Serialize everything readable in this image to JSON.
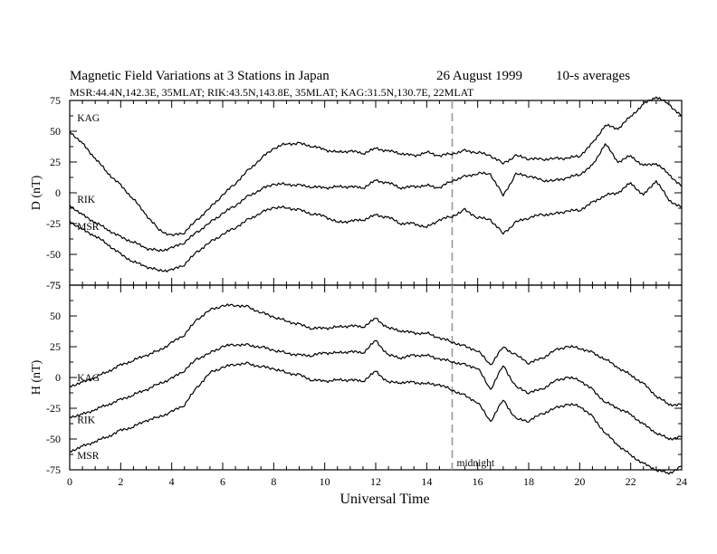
{
  "header": {
    "title_left": "Magnetic Field Variations at 3 Stations in Japan",
    "title_date": "26 August  1999",
    "title_avg": "10-s averages",
    "subtitle": "MSR:44.4N,142.3E, 35MLAT;  RIK:43.5N,143.8E, 35MLAT;  KAG:31.5N,130.7E, 22MLAT"
  },
  "chart_data": [
    {
      "type": "line",
      "ylabel": "D (nT)",
      "ylim": [
        -75,
        75
      ],
      "yticks": [
        "75",
        "50",
        "25",
        "0",
        "-25",
        "-50",
        "-75"
      ],
      "xlim": [
        0,
        24
      ],
      "grid": false,
      "annotations": [
        {
          "text": "midnight",
          "x": 15,
          "style": "dashed-vertical"
        }
      ],
      "series": [
        {
          "name": "KAG",
          "x": [
            0,
            0.5,
            1,
            1.5,
            2,
            2.5,
            3,
            3.5,
            4,
            4.5,
            5,
            5.5,
            6,
            6.5,
            7,
            7.5,
            8,
            8.5,
            9,
            9.5,
            10,
            10.5,
            11,
            11.5,
            12,
            12.5,
            13,
            13.5,
            14,
            14.5,
            15,
            15.5,
            16,
            16.5,
            17,
            17.5,
            18,
            18.5,
            19,
            19.5,
            20,
            20.5,
            21,
            21.5,
            22,
            22.5,
            23,
            23.5,
            24
          ],
          "values": [
            50,
            40,
            28,
            16,
            6,
            -5,
            -18,
            -30,
            -35,
            -32,
            -22,
            -12,
            -2,
            8,
            18,
            28,
            36,
            40,
            40,
            38,
            35,
            33,
            34,
            32,
            36,
            34,
            32,
            30,
            33,
            30,
            32,
            34,
            33,
            30,
            24,
            30,
            28,
            27,
            28,
            28,
            30,
            40,
            55,
            52,
            62,
            72,
            78,
            72,
            62
          ]
        },
        {
          "name": "RIK",
          "x": [
            0,
            0.5,
            1,
            1.5,
            2,
            2.5,
            3,
            3.5,
            4,
            4.5,
            5,
            5.5,
            6,
            6.5,
            7,
            7.5,
            8,
            8.5,
            9,
            9.5,
            10,
            10.5,
            11,
            11.5,
            12,
            12.5,
            13,
            13.5,
            14,
            14.5,
            15,
            15.5,
            16,
            16.5,
            17,
            17.5,
            18,
            18.5,
            19,
            19.5,
            20,
            20.5,
            21,
            21.5,
            22,
            22.5,
            23,
            23.5,
            24
          ],
          "values": [
            -10,
            -18,
            -24,
            -30,
            -36,
            -40,
            -45,
            -47,
            -45,
            -40,
            -32,
            -24,
            -17,
            -10,
            -3,
            3,
            7,
            7,
            6,
            5,
            4,
            5,
            5,
            4,
            10,
            8,
            4,
            5,
            6,
            4,
            10,
            13,
            16,
            15,
            -2,
            15,
            14,
            10,
            10,
            12,
            15,
            22,
            40,
            25,
            30,
            22,
            24,
            15,
            5
          ]
        },
        {
          "name": "MSR",
          "x": [
            0,
            0.5,
            1,
            1.5,
            2,
            2.5,
            3,
            3.5,
            4,
            4.5,
            5,
            5.5,
            6,
            6.5,
            7,
            7.5,
            8,
            8.5,
            9,
            9.5,
            10,
            10.5,
            11,
            11.5,
            12,
            12.5,
            13,
            13.5,
            14,
            14.5,
            15,
            15.5,
            16,
            16.5,
            17,
            17.5,
            18,
            18.5,
            19,
            19.5,
            20,
            20.5,
            21,
            21.5,
            22,
            22.5,
            23,
            23.5,
            24
          ],
          "values": [
            -23,
            -30,
            -35,
            -42,
            -50,
            -56,
            -60,
            -63,
            -63,
            -58,
            -48,
            -40,
            -34,
            -28,
            -22,
            -16,
            -12,
            -12,
            -14,
            -17,
            -19,
            -24,
            -23,
            -22,
            -18,
            -20,
            -25,
            -25,
            -28,
            -22,
            -19,
            -14,
            -20,
            -22,
            -33,
            -24,
            -20,
            -18,
            -17,
            -15,
            -14,
            -8,
            -2,
            0,
            8,
            -2,
            10,
            -6,
            -12
          ]
        }
      ]
    },
    {
      "type": "line",
      "ylabel": "H (nT)",
      "ylim": [
        -75,
        75
      ],
      "yticks": [
        "75",
        "50",
        "25",
        "0",
        "-25",
        "-50",
        "-75"
      ],
      "xlabel": "Universal Time",
      "xticks": [
        "0",
        "2",
        "4",
        "6",
        "8",
        "10",
        "12",
        "14",
        "16",
        "18",
        "20",
        "22",
        "24"
      ],
      "xlim": [
        0,
        24
      ],
      "grid": false,
      "annotations": [
        {
          "text": "midnight",
          "x": 15,
          "style": "dashed-vertical"
        }
      ],
      "series": [
        {
          "name": "KAG",
          "x": [
            0,
            0.5,
            1,
            1.5,
            2,
            2.5,
            3,
            3.5,
            4,
            4.5,
            5,
            5.5,
            6,
            6.5,
            7,
            7.5,
            8,
            8.5,
            9,
            9.5,
            10,
            10.5,
            11,
            11.5,
            12,
            12.5,
            13,
            13.5,
            14,
            14.5,
            15,
            15.5,
            16,
            16.5,
            17,
            17.5,
            18,
            18.5,
            19,
            19.5,
            20,
            20.5,
            21,
            21.5,
            22,
            22.5,
            23,
            23.5,
            24
          ],
          "values": [
            -7,
            -4,
            0,
            5,
            10,
            14,
            18,
            22,
            28,
            35,
            47,
            55,
            58,
            59,
            57,
            53,
            49,
            46,
            43,
            40,
            40,
            41,
            42,
            41,
            48,
            40,
            38,
            36,
            36,
            32,
            29,
            25,
            22,
            10,
            25,
            18,
            12,
            15,
            22,
            25,
            24,
            20,
            15,
            8,
            2,
            -5,
            -15,
            -22,
            -22
          ]
        },
        {
          "name": "RIK",
          "x": [
            0,
            0.5,
            1,
            1.5,
            2,
            2.5,
            3,
            3.5,
            4,
            4.5,
            5,
            5.5,
            6,
            6.5,
            7,
            7.5,
            8,
            8.5,
            9,
            9.5,
            10,
            10.5,
            11,
            11.5,
            12,
            12.5,
            13,
            13.5,
            14,
            14.5,
            15,
            15.5,
            16,
            16.5,
            17,
            17.5,
            18,
            18.5,
            19,
            19.5,
            20,
            20.5,
            21,
            21.5,
            22,
            22.5,
            23,
            23.5,
            24
          ],
          "values": [
            -32,
            -30,
            -26,
            -22,
            -18,
            -14,
            -10,
            -5,
            -1,
            6,
            15,
            20,
            25,
            27,
            26,
            25,
            22,
            20,
            18,
            18,
            20,
            20,
            21,
            20,
            30,
            18,
            16,
            18,
            18,
            15,
            13,
            10,
            8,
            -10,
            10,
            -8,
            -12,
            -10,
            -3,
            0,
            -2,
            -10,
            -20,
            -25,
            -30,
            -38,
            -45,
            -50,
            -48
          ]
        },
        {
          "name": "MSR",
          "x": [
            0,
            0.5,
            1,
            1.5,
            2,
            2.5,
            3,
            3.5,
            4,
            4.5,
            5,
            5.5,
            6,
            6.5,
            7,
            7.5,
            8,
            8.5,
            9,
            9.5,
            10,
            10.5,
            11,
            11.5,
            12,
            12.5,
            13,
            13.5,
            14,
            14.5,
            15,
            15.5,
            16,
            16.5,
            17,
            17.5,
            18,
            18.5,
            19,
            19.5,
            20,
            20.5,
            21,
            21.5,
            22,
            22.5,
            23,
            23.5,
            24
          ],
          "values": [
            -60,
            -56,
            -52,
            -48,
            -43,
            -40,
            -35,
            -32,
            -28,
            -22,
            -8,
            4,
            8,
            11,
            11,
            9,
            7,
            4,
            2,
            -2,
            -3,
            -2,
            -2,
            -3,
            5,
            -4,
            -4,
            -4,
            -5,
            -6,
            -10,
            -15,
            -20,
            -36,
            -18,
            -34,
            -35,
            -30,
            -25,
            -22,
            -23,
            -32,
            -45,
            -55,
            -63,
            -70,
            -75,
            -78,
            -72
          ]
        }
      ]
    }
  ]
}
